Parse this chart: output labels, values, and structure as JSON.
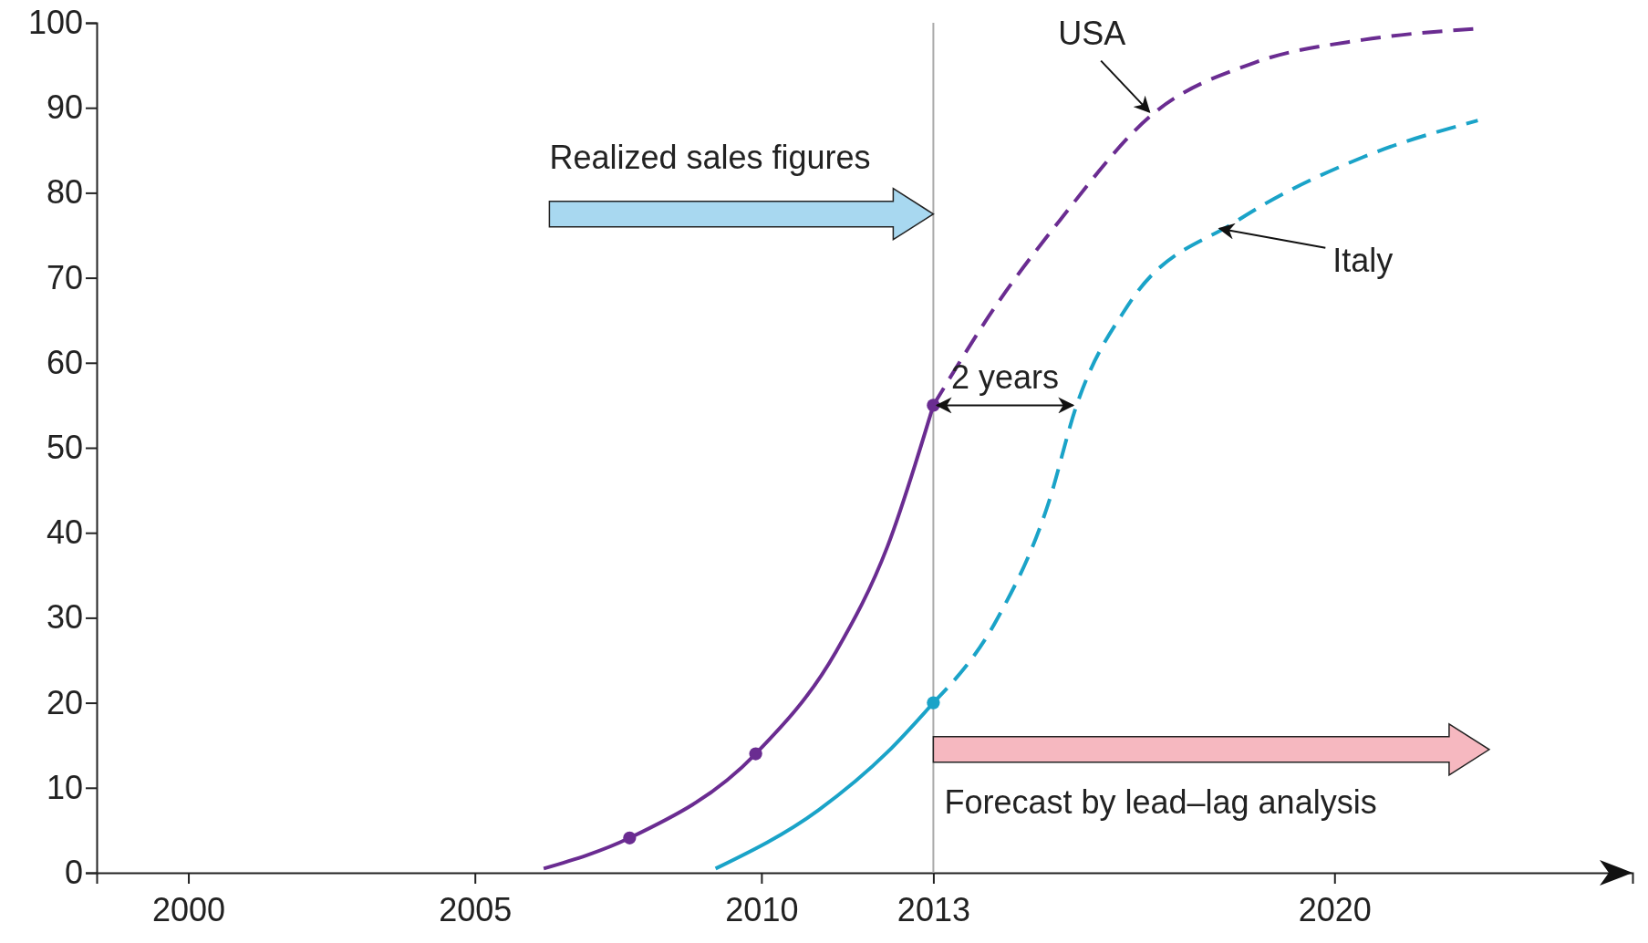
{
  "chart_data": {
    "type": "line",
    "xlim": [
      1998.4,
      2025.2
    ],
    "ylim": [
      0,
      100
    ],
    "xticks": [
      2000,
      2005,
      2010,
      2013,
      2020
    ],
    "yticks": [
      0,
      10,
      20,
      30,
      40,
      50,
      60,
      70,
      80,
      90,
      100
    ],
    "grid": false,
    "series": [
      {
        "color": "#6a2c91",
        "line_style": "solid",
        "marker": "none",
        "x": [
          2006.2,
          2007.7,
          2009.9,
          2011.3,
          2012.2,
          2013
        ],
        "values": [
          0.5,
          4.1,
          14,
          26,
          38.4,
          55
        ]
      },
      {
        "color": "#6a2c91",
        "line_style": "dashed",
        "marker": "none",
        "x": [
          2013,
          2014.1,
          2015.2,
          2016.8,
          2018.6,
          2020.5,
          2022.5
        ],
        "values": [
          55,
          66.8,
          76.7,
          89.1,
          95.3,
          98,
          99.3
        ]
      },
      {
        "color": "#1aa3c8",
        "line_style": "solid",
        "marker": "none",
        "x": [
          2009.2,
          2011,
          2012.2,
          2013
        ],
        "values": [
          0.5,
          7.4,
          14.2,
          20
        ]
      },
      {
        "color": "#1aa3c8",
        "line_style": "dashed",
        "marker": "none",
        "x": [
          2013,
          2014.1,
          2015,
          2015.5,
          2016.4,
          2018.3,
          2020.5,
          2022.5
        ],
        "values": [
          20,
          29.7,
          43.3,
          55,
          66.8,
          76.7,
          84.2,
          88.5
        ]
      },
      {
        "type": "scatter",
        "color": "#6a2c91",
        "marker": "circle",
        "x": [
          2007.7,
          2009.9,
          2013
        ],
        "values": [
          4.1,
          14,
          55
        ]
      },
      {
        "type": "scatter",
        "color": "#1aa3c8",
        "marker": "circle",
        "x": [
          2013
        ],
        "values": [
          20
        ]
      }
    ],
    "ref_lines": [
      {
        "axis": "x",
        "value": 2013,
        "color": "#aaaaaa"
      }
    ],
    "annotations": [
      {
        "text": "USA",
        "x": 2016.8,
        "y": 89.1
      },
      {
        "text": "Italy",
        "x": 2017.9,
        "y": 76
      },
      "2 years",
      {
        "text": "Realized sales figures",
        "x": 2013,
        "y": 77.5
      },
      "Forecast by lead–lag analysis"
    ]
  }
}
